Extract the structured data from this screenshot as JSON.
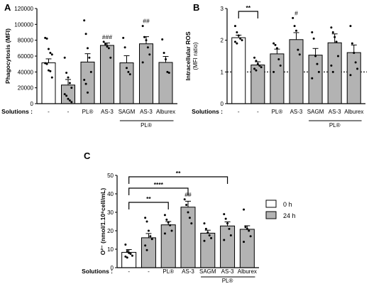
{
  "colors": {
    "white_bar": "#ffffff",
    "gray_bar": "#b3b3b3",
    "stroke": "#000000"
  },
  "chart_data": [
    {
      "type": "bar",
      "panel_label": "A",
      "ylabel": "Phagocytosis (MFI)",
      "ylim": [
        0,
        120000
      ],
      "yticks": [
        "0",
        "20000",
        "40000",
        "60000",
        "80000",
        "100000",
        "120000"
      ],
      "xlabel": "Solutions :",
      "categories": [
        "-",
        "-",
        "PL®",
        "AS-3",
        "SAGM",
        "AS-3",
        "Alburex"
      ],
      "group_label": "PL®",
      "series": [
        {
          "name": "0 h",
          "values": [
            51500,
            null,
            null,
            null,
            null,
            null,
            null
          ],
          "errors": [
            5000,
            null,
            null,
            null,
            null,
            null,
            null
          ]
        },
        {
          "name": "24 h",
          "values": [
            null,
            23500,
            52500,
            73500,
            51500,
            75500,
            52000
          ],
          "errors": [
            null,
            7000,
            10500,
            3000,
            9000,
            9000,
            7500
          ]
        }
      ],
      "points": [
        [
          83000,
          82000,
          69000,
          64000,
          62000,
          51000,
          50000,
          42000,
          41000,
          33000
        ],
        [
          58000,
          39000,
          33000,
          26000,
          20000,
          12000,
          10000,
          6000,
          4000,
          2000
        ],
        [
          105000,
          88000,
          70000,
          58000,
          40000,
          30000,
          25000,
          14000
        ],
        [
          78000,
          75000,
          72000,
          70000,
          58000
        ],
        [
          83000,
          71000,
          45000,
          40000,
          37000
        ],
        [
          98000,
          84000,
          80000,
          71000,
          62000,
          52000
        ],
        [
          81000,
          64000,
          56000,
          40000,
          39000
        ]
      ],
      "significance": [
        {
          "type": "label",
          "category": 3,
          "text": "###"
        },
        {
          "type": "label",
          "category": 5,
          "text": "##"
        }
      ]
    },
    {
      "type": "bar",
      "panel_label": "B",
      "ylabel": "Intracellular ROS",
      "ylabel2": "(MFI ratio)",
      "ylim": [
        0,
        3
      ],
      "yticks": [
        "0",
        "1",
        "2",
        "3"
      ],
      "reference_line": 1,
      "xlabel": "Solutions :",
      "categories": [
        "-",
        "-",
        "PL®",
        "AS-3",
        "SAGM",
        "AS-3",
        "Alburex"
      ],
      "group_label": "PL®",
      "series": [
        {
          "name": "0 h",
          "values": [
            2.08,
            null,
            null,
            null,
            null,
            null,
            null
          ],
          "errors": [
            0.08,
            null,
            null,
            null,
            null,
            null,
            null
          ]
        },
        {
          "name": "24 h",
          "values": [
            null,
            1.22,
            1.57,
            2.02,
            1.53,
            1.92,
            1.61
          ],
          "errors": [
            null,
            0.1,
            0.15,
            0.22,
            0.21,
            0.28,
            0.24
          ]
        }
      ],
      "points": [
        [
          2.45,
          2.25,
          2.15,
          2.05,
          2.0,
          1.95,
          1.9
        ],
        [
          1.45,
          1.35,
          1.25,
          1.2,
          1.15,
          1.1,
          1.05
        ],
        [
          1.9,
          1.85,
          1.75,
          1.4,
          1.2,
          1.0
        ],
        [
          2.7,
          2.45,
          2.3,
          1.7,
          1.55
        ],
        [
          2.25,
          2.05,
          1.5,
          1.25,
          1.0,
          0.8
        ],
        [
          2.4,
          2.25,
          2.1,
          1.95,
          1.5,
          1.2,
          1.0
        ],
        [
          2.45,
          1.9,
          1.6,
          1.3,
          1.1,
          0.9
        ]
      ],
      "significance": [
        {
          "type": "bracket",
          "from": 0,
          "to": 1,
          "text": "**"
        },
        {
          "type": "label",
          "category": 3,
          "text": "#"
        }
      ]
    },
    {
      "type": "bar",
      "panel_label": "C",
      "ylabel": "O²⁻ (nmol/1.10⁶cell/mL)",
      "ylim": [
        0,
        50
      ],
      "yticks": [
        "0",
        "10",
        "20",
        "30",
        "40",
        "50"
      ],
      "xlabel": "Solutions :",
      "categories": [
        "-",
        "-",
        "PL®",
        "AS-3",
        "SAGM",
        "AS-3",
        "Alburex"
      ],
      "group_label": "PL®",
      "legend": [
        "0 h",
        "24 h"
      ],
      "series": [
        {
          "name": "0 h",
          "values": [
            8.3,
            null,
            null,
            null,
            null,
            null,
            null
          ],
          "errors": [
            1.5,
            null,
            null,
            null,
            null,
            null,
            null
          ]
        },
        {
          "name": "24 h",
          "values": [
            null,
            16.2,
            23.2,
            32.8,
            18.7,
            22.6,
            20.8
          ],
          "errors": [
            null,
            2.3,
            1.8,
            3.2,
            1.6,
            2.2,
            1.9
          ]
        }
      ],
      "points": [
        [
          12.5,
          9.0,
          8.0,
          7.5,
          6.5,
          6.0,
          5.5
        ],
        [
          27.0,
          25.0,
          20.0,
          17.0,
          15.5,
          12.0,
          9.5
        ],
        [
          28.5,
          26.0,
          24.5,
          23.0,
          20.0,
          18.5
        ],
        [
          37.0,
          34.0,
          30.0,
          27.0,
          24.0
        ],
        [
          24.0,
          21.0,
          19.0,
          17.5,
          16.0,
          14.5
        ],
        [
          29.0,
          26.5,
          24.0,
          21.0,
          17.5,
          15.0
        ],
        [
          31.5,
          22.0,
          21.0,
          20.0,
          17.0,
          14.0
        ]
      ],
      "significance": [
        {
          "type": "bracket",
          "from": 0,
          "to": 2,
          "text": "**"
        },
        {
          "type": "bracket",
          "from": 0,
          "to": 3,
          "text": "****"
        },
        {
          "type": "bracket",
          "from": 0,
          "to": 5,
          "text": "**"
        },
        {
          "type": "label",
          "category": 3,
          "text": "##"
        }
      ]
    }
  ]
}
